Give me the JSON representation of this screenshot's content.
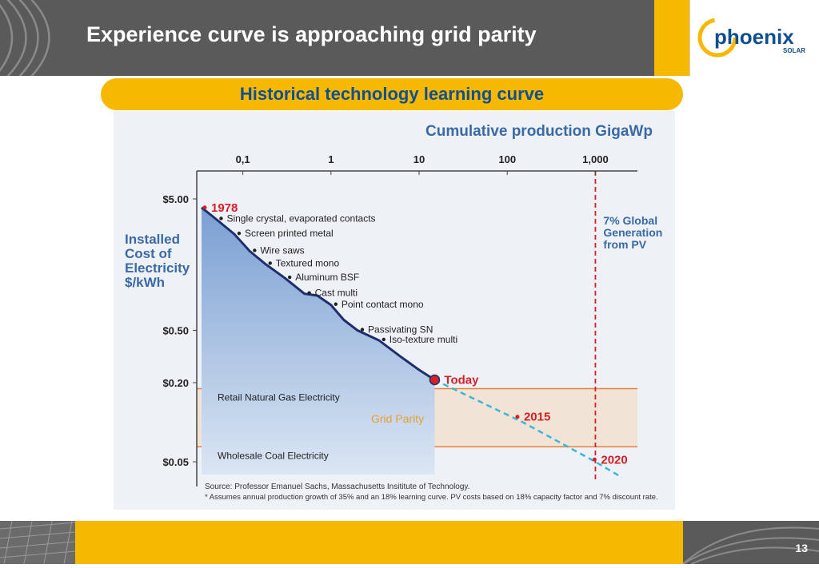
{
  "slide": {
    "title": "Experience curve is approaching grid parity",
    "subtitle": "Historical technology learning curve",
    "page_number": "13"
  },
  "logo": {
    "name": "phoenix",
    "tagline": "SOLAR"
  },
  "colors": {
    "header_gray": "#5a5a5a",
    "accent_yellow": "#f7b900",
    "title_blue": "#0f4f8f",
    "chart_title_blue": "#3a6aa6",
    "curve_navy": "#1f2f6e",
    "highlight_red": "#d62027",
    "band_orange": "#e8803a",
    "projection_cyan": "#3ab7d6"
  },
  "chart_data": {
    "type": "line",
    "title": "Cumulative production GigaWp",
    "ylabel": "Installed Cost of Electricity $/kWh",
    "x_scale": "log",
    "y_scale": "log",
    "x_ticks": [
      {
        "label": "0,1",
        "value": 0.1
      },
      {
        "label": "1",
        "value": 1
      },
      {
        "label": "10",
        "value": 10
      },
      {
        "label": "100",
        "value": 100
      },
      {
        "label": "1,000",
        "value": 1000
      }
    ],
    "y_ticks": [
      {
        "label": "$5.00",
        "value": 5.0
      },
      {
        "label": "$0.50",
        "value": 0.5
      },
      {
        "label": "$0.20",
        "value": 0.2
      },
      {
        "label": "$0.05",
        "value": 0.05
      }
    ],
    "xlim": [
      0.03,
      3000
    ],
    "ylim": [
      0.04,
      5.0
    ],
    "series": [
      {
        "points": [
          {
            "x": 0.034,
            "y": 4.3
          },
          {
            "x": 0.05,
            "y": 3.5
          },
          {
            "x": 0.08,
            "y": 2.7
          },
          {
            "x": 0.12,
            "y": 2.0
          },
          {
            "x": 0.18,
            "y": 1.6
          },
          {
            "x": 0.3,
            "y": 1.25
          },
          {
            "x": 0.5,
            "y": 0.95
          },
          {
            "x": 0.7,
            "y": 0.92
          },
          {
            "x": 1.0,
            "y": 0.78
          },
          {
            "x": 1.4,
            "y": 0.6
          },
          {
            "x": 2.0,
            "y": 0.5
          },
          {
            "x": 3.5,
            "y": 0.42
          },
          {
            "x": 6.0,
            "y": 0.32
          },
          {
            "x": 10.0,
            "y": 0.25
          },
          {
            "x": 15.0,
            "y": 0.21
          }
        ]
      },
      {
        "points": [
          {
            "x": 15.0,
            "y": 0.21
          },
          {
            "x": 150.0,
            "y": 0.1
          },
          {
            "x": 1000.0,
            "y": 0.05
          },
          {
            "x": 2000.0,
            "y": 0.038
          }
        ]
      }
    ],
    "milestones": [
      {
        "label": "1978",
        "x": 0.034,
        "y": 4.3
      },
      {
        "label": "Today",
        "x": 15.0,
        "y": 0.21
      },
      {
        "label": "2015",
        "x": 120.0,
        "y": 0.11
      },
      {
        "label": "2020",
        "x": 900.0,
        "y": 0.052
      }
    ],
    "annotations": [
      {
        "text": "Single crystal, evaporated contacts",
        "x": 0.05,
        "y": 3.5
      },
      {
        "text": "Screen printed metal",
        "x": 0.08,
        "y": 2.7
      },
      {
        "text": "Wire saws",
        "x": 0.12,
        "y": 2.0
      },
      {
        "text": "Textured  mono",
        "x": 0.18,
        "y": 1.6
      },
      {
        "text": "Aluminum BSF",
        "x": 0.3,
        "y": 1.25
      },
      {
        "text": "Cast multi",
        "x": 0.5,
        "y": 0.95
      },
      {
        "text": "Point contact mono",
        "x": 1.0,
        "y": 0.78
      },
      {
        "text": "Passivating SN",
        "x": 2.0,
        "y": 0.5
      },
      {
        "text": "Iso-texture multi",
        "x": 3.5,
        "y": 0.42
      }
    ],
    "bands": [
      {
        "label": "Retail Natural Gas Electricity",
        "value": 0.18
      },
      {
        "label": "Wholesale Coal Electricity",
        "value": 0.065
      }
    ],
    "band_fill_label": "Grid Parity",
    "vline": {
      "x": 1000,
      "label": "7% Global Generation from PV"
    },
    "source": "Source: Professor Emanuel Sachs, Massachusetts Insititute of Technology.",
    "footnote": "* Assumes annual production growth of 35% and an 18% learning curve. PV costs based on 18% capacity factor and 7% discount rate."
  }
}
